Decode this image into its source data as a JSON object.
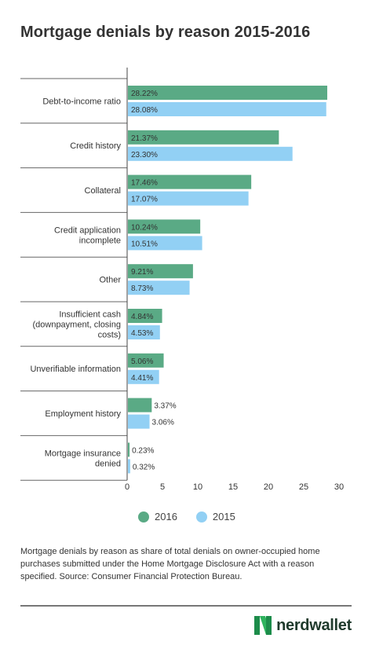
{
  "title": "Mortgage denials by reason 2015-2016",
  "colors": {
    "2016": "#5aaa85",
    "2015": "#92d0f4"
  },
  "legend": [
    {
      "label": "2016",
      "color": "#5aaa85"
    },
    {
      "label": "2015",
      "color": "#92d0f4"
    }
  ],
  "note": "Mortgage denials by reason as share of total denials on owner-occupied home purchases submitted under the Home Mortgage Disclosure Act with a reason specified. Source: Consumer Financial Protection Bureau.",
  "brand": {
    "name": "nerdwallet",
    "icon": "nerdwallet-logo-icon"
  },
  "chart_data": {
    "type": "bar",
    "orientation": "horizontal",
    "title": "Mortgage denials by reason 2015-2016",
    "categories": [
      [
        "Debt-to-income ratio"
      ],
      [
        "Credit history"
      ],
      [
        "Collateral"
      ],
      [
        "Credit application",
        "incomplete"
      ],
      [
        "Other"
      ],
      [
        "Insufficient cash",
        "(downpayment, closing",
        "costs)"
      ],
      [
        "Unverifiable information"
      ],
      [
        "Employment history"
      ],
      [
        "Mortgage insurance",
        "denied"
      ]
    ],
    "series": [
      {
        "name": "2016",
        "values": [
          28.22,
          21.37,
          17.46,
          10.24,
          9.21,
          4.84,
          5.06,
          3.37,
          0.23
        ],
        "labels": [
          "28.22%",
          "21.37%",
          "17.46%",
          "10.24%",
          "9.21%",
          "4.84%",
          "5.06%",
          "3.37%",
          "0.23%"
        ]
      },
      {
        "name": "2015",
        "values": [
          28.08,
          23.3,
          17.07,
          10.51,
          8.73,
          4.53,
          4.41,
          3.06,
          0.32
        ],
        "labels": [
          "28.08%",
          "23.30%",
          "17.07%",
          "10.51%",
          "8.73%",
          "4.53%",
          "4.41%",
          "3.06%",
          "0.32%"
        ]
      }
    ],
    "xlim": [
      0,
      30
    ],
    "xticks": [
      0,
      5,
      10,
      15,
      20,
      25,
      30
    ],
    "xtick_labels": [
      "0",
      "5",
      "10",
      "15",
      "20",
      "25",
      "30"
    ],
    "grid": false,
    "legend_position": "bottom-center"
  }
}
